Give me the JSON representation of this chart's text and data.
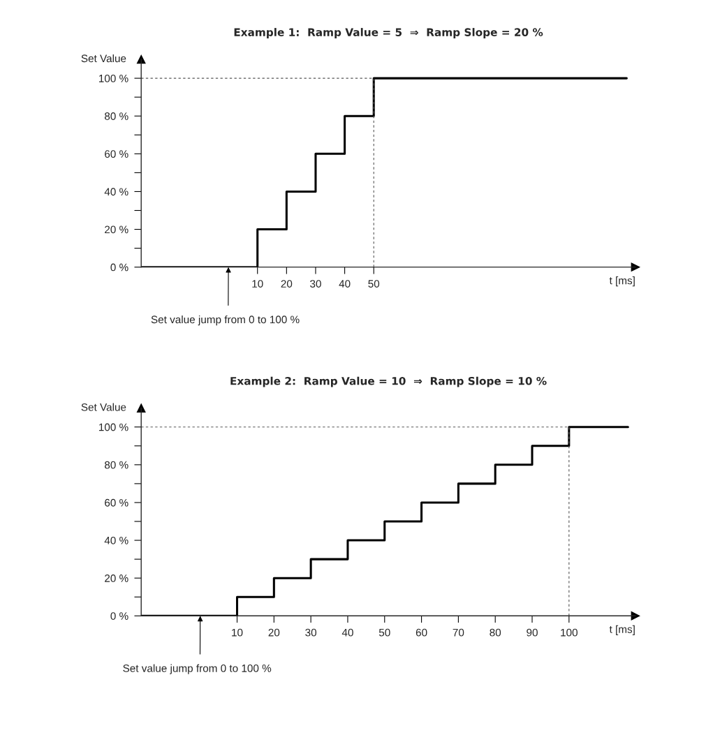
{
  "chart_data": [
    {
      "type": "step",
      "title": "Example 1:  Ramp Value = 5  ⇒  Ramp Slope = 20 %",
      "xlabel": "t [ms]",
      "ylabel": "Set Value",
      "x": [
        -30,
        10,
        20,
        30,
        40,
        50,
        137
      ],
      "values": [
        0,
        20,
        40,
        60,
        80,
        100,
        100
      ],
      "color": "#000000",
      "xlim": [
        -30,
        140
      ],
      "xticks": [
        10,
        20,
        30,
        40,
        50
      ],
      "ylim": [
        0,
        110
      ],
      "yticks": [
        {
          "value": 0,
          "label": "0 %"
        },
        {
          "value": 10,
          "label": null
        },
        {
          "value": 20,
          "label": "20 %"
        },
        {
          "value": 30,
          "label": null
        },
        {
          "value": 40,
          "label": "40 %"
        },
        {
          "value": 50,
          "label": null
        },
        {
          "value": 60,
          "label": "60 %"
        },
        {
          "value": 70,
          "label": null
        },
        {
          "value": 80,
          "label": "80 %"
        },
        {
          "value": 90,
          "label": null
        },
        {
          "value": 100,
          "label": "100 %"
        }
      ],
      "ref_lines": [
        {
          "axis": "y",
          "value": 100,
          "color": "#555555",
          "line_style": "dashed"
        },
        {
          "axis": "x",
          "value": 50,
          "color": "#555555",
          "line_style": "dashed"
        }
      ],
      "annotations": [
        {
          "text": "Set value jump from 0 to 100 %",
          "x": 0,
          "y": 0
        }
      ],
      "grid": false,
      "legend": false
    },
    {
      "type": "step",
      "title": "Example 2:  Ramp Value = 10  ⇒  Ramp Slope = 10 %",
      "xlabel": "t [ms]",
      "ylabel": "Set Value",
      "x": [
        -16,
        10,
        20,
        30,
        40,
        50,
        60,
        70,
        80,
        90,
        100,
        116
      ],
      "values": [
        0,
        10,
        20,
        30,
        40,
        50,
        60,
        70,
        80,
        90,
        100,
        100
      ],
      "color": "#000000",
      "xlim": [
        -16,
        118
      ],
      "xticks": [
        10,
        20,
        30,
        40,
        50,
        60,
        70,
        80,
        90,
        100
      ],
      "ylim": [
        0,
        110
      ],
      "yticks": [
        {
          "value": 0,
          "label": "0 %"
        },
        {
          "value": 10,
          "label": null
        },
        {
          "value": 20,
          "label": "20 %"
        },
        {
          "value": 30,
          "label": null
        },
        {
          "value": 40,
          "label": "40 %"
        },
        {
          "value": 50,
          "label": null
        },
        {
          "value": 60,
          "label": "60 %"
        },
        {
          "value": 70,
          "label": null
        },
        {
          "value": 80,
          "label": "80 %"
        },
        {
          "value": 90,
          "label": null
        },
        {
          "value": 100,
          "label": "100 %"
        }
      ],
      "ref_lines": [
        {
          "axis": "y",
          "value": 100,
          "color": "#555555",
          "line_style": "dashed"
        },
        {
          "axis": "x",
          "value": 100,
          "color": "#555555",
          "line_style": "dashed"
        }
      ],
      "annotations": [
        {
          "text": "Set value jump from 0 to 100 %",
          "x": 0,
          "y": 0
        }
      ],
      "grid": false,
      "legend": false
    }
  ]
}
